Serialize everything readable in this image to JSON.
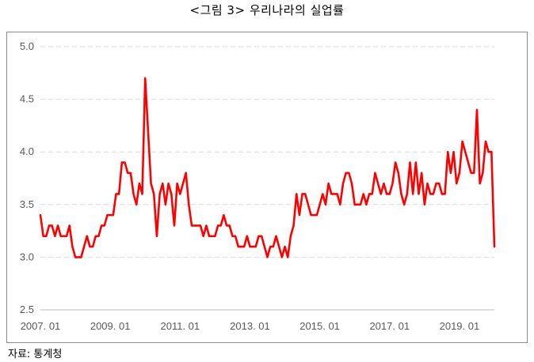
{
  "title": "<그림 3> 우리나라의 실업률",
  "source": "자료: 통계청",
  "chart_data": {
    "type": "line",
    "title": "<그림 3> 우리나라의 실업률",
    "xlabel": "",
    "ylabel": "",
    "ylim": [
      2.5,
      5.0
    ],
    "yticks": [
      "2.5",
      "3.0",
      "3.5",
      "4.0",
      "4.5",
      "5.0"
    ],
    "xticks": [
      "2007. 01",
      "2009. 01",
      "2011. 01",
      "2013. 01",
      "2015. 01",
      "2017. 01",
      "2019. 01"
    ],
    "grid": "horizontal dashed",
    "legend": "none",
    "line_color": "#ff0000",
    "series": [
      {
        "x": [
          "2007.01",
          "2007.02",
          "2007.03",
          "2007.04",
          "2007.05",
          "2007.06",
          "2007.07",
          "2007.08",
          "2007.09",
          "2007.10",
          "2007.11",
          "2007.12",
          "2008.01",
          "2008.02",
          "2008.03",
          "2008.04",
          "2008.05",
          "2008.06",
          "2008.07",
          "2008.08",
          "2008.09",
          "2008.10",
          "2008.11",
          "2008.12",
          "2009.01",
          "2009.02",
          "2009.03",
          "2009.04",
          "2009.05",
          "2009.06",
          "2009.07",
          "2009.08",
          "2009.09",
          "2009.10",
          "2009.11",
          "2009.12",
          "2010.01",
          "2010.02",
          "2010.03",
          "2010.04",
          "2010.05",
          "2010.06",
          "2010.07",
          "2010.08",
          "2010.09",
          "2010.10",
          "2010.11",
          "2010.12",
          "2011.01",
          "2011.02",
          "2011.03",
          "2011.04",
          "2011.05",
          "2011.06",
          "2011.07",
          "2011.08",
          "2011.09",
          "2011.10",
          "2011.11",
          "2011.12",
          "2012.01",
          "2012.02",
          "2012.03",
          "2012.04",
          "2012.05",
          "2012.06",
          "2012.07",
          "2012.08",
          "2012.09",
          "2012.10",
          "2012.11",
          "2012.12",
          "2013.01",
          "2013.02",
          "2013.03",
          "2013.04",
          "2013.05",
          "2013.06",
          "2013.07",
          "2013.08",
          "2013.09",
          "2013.10",
          "2013.11",
          "2013.12",
          "2014.01",
          "2014.02",
          "2014.03",
          "2014.04",
          "2014.05",
          "2014.06",
          "2014.07",
          "2014.08",
          "2014.09",
          "2014.10",
          "2014.11",
          "2014.12",
          "2015.01",
          "2015.02",
          "2015.03",
          "2015.04",
          "2015.05",
          "2015.06",
          "2015.07",
          "2015.08",
          "2015.09",
          "2015.10",
          "2015.11",
          "2015.12",
          "2016.01",
          "2016.02",
          "2016.03",
          "2016.04",
          "2016.05",
          "2016.06",
          "2016.07",
          "2016.08",
          "2016.09",
          "2016.10",
          "2016.11",
          "2016.12",
          "2017.01",
          "2017.02",
          "2017.03",
          "2017.04",
          "2017.05",
          "2017.06",
          "2017.07",
          "2017.08",
          "2017.09",
          "2017.10",
          "2017.11",
          "2017.12",
          "2018.01",
          "2018.02",
          "2018.03",
          "2018.04",
          "2018.05",
          "2018.06",
          "2018.07",
          "2018.08",
          "2018.09",
          "2018.10",
          "2018.11",
          "2018.12",
          "2019.01",
          "2019.02",
          "2019.03",
          "2019.04",
          "2019.05",
          "2019.06",
          "2019.07",
          "2019.08",
          "2019.09",
          "2019.10",
          "2019.11",
          "2019.12",
          "2020.01"
        ],
        "values": [
          3.4,
          3.2,
          3.2,
          3.3,
          3.3,
          3.2,
          3.3,
          3.2,
          3.2,
          3.2,
          3.3,
          3.1,
          3.0,
          3.0,
          3.0,
          3.1,
          3.2,
          3.1,
          3.1,
          3.2,
          3.2,
          3.3,
          3.3,
          3.4,
          3.4,
          3.4,
          3.6,
          3.6,
          3.9,
          3.9,
          3.8,
          3.8,
          3.6,
          3.5,
          3.7,
          3.6,
          4.7,
          4.2,
          3.7,
          3.6,
          3.2,
          3.6,
          3.7,
          3.5,
          3.7,
          3.6,
          3.3,
          3.7,
          3.6,
          3.7,
          3.8,
          3.5,
          3.3,
          3.3,
          3.3,
          3.3,
          3.2,
          3.3,
          3.2,
          3.2,
          3.2,
          3.3,
          3.3,
          3.4,
          3.3,
          3.3,
          3.2,
          3.2,
          3.1,
          3.1,
          3.1,
          3.2,
          3.1,
          3.1,
          3.1,
          3.2,
          3.2,
          3.1,
          3.0,
          3.1,
          3.1,
          3.2,
          3.1,
          3.0,
          3.1,
          3.0,
          3.2,
          3.3,
          3.6,
          3.4,
          3.6,
          3.6,
          3.5,
          3.4,
          3.4,
          3.4,
          3.5,
          3.6,
          3.5,
          3.7,
          3.6,
          3.6,
          3.6,
          3.5,
          3.7,
          3.8,
          3.8,
          3.7,
          3.5,
          3.5,
          3.5,
          3.6,
          3.5,
          3.6,
          3.6,
          3.8,
          3.7,
          3.6,
          3.7,
          3.6,
          3.6,
          3.7,
          3.9,
          3.8,
          3.6,
          3.5,
          3.6,
          3.9,
          3.6,
          3.9,
          3.6,
          3.8,
          3.5,
          3.7,
          3.6,
          3.6,
          3.7,
          3.7,
          3.6,
          3.6,
          4.0,
          3.8,
          4.0,
          3.7,
          3.8,
          4.1,
          4.0,
          3.9,
          3.8,
          3.8,
          4.4,
          3.7,
          3.8,
          4.1,
          4.0,
          4.0,
          3.1
        ]
      }
    ]
  }
}
